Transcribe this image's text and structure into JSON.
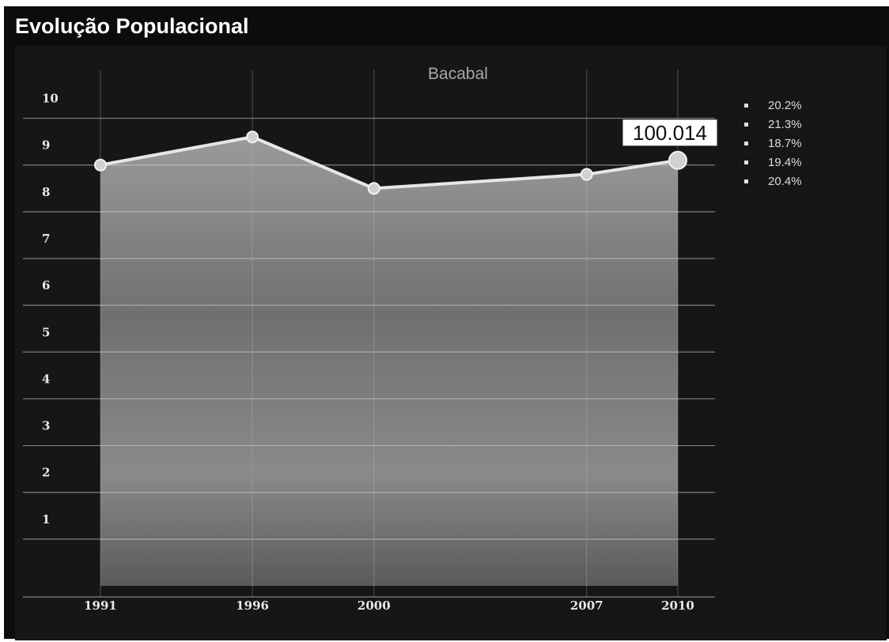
{
  "header": {
    "title": "Evolução Populacional"
  },
  "chart_data": {
    "type": "area",
    "title": "Bacabal",
    "xlabel": "",
    "ylabel": "",
    "x": [
      "1991",
      "1996",
      "2000",
      "2007",
      "2010"
    ],
    "x_numeric": [
      1991,
      1996,
      2000,
      2007,
      2010
    ],
    "values": [
      9.0,
      9.6,
      8.5,
      8.8,
      9.1
    ],
    "yticks": [
      1,
      2,
      3,
      4,
      5,
      6,
      7,
      8,
      9,
      10
    ],
    "ylim": [
      0,
      10.5
    ],
    "grid": true,
    "callout": {
      "x": 2010,
      "label": "100.014"
    },
    "legend": {
      "position": "top-right",
      "entries": [
        "20.2%",
        "21.3%",
        "18.7%",
        "19.4%",
        "20.4%"
      ]
    },
    "colors": {
      "area": "#8e8e8e",
      "line": "#e6e6e6",
      "background": "#161616"
    }
  }
}
